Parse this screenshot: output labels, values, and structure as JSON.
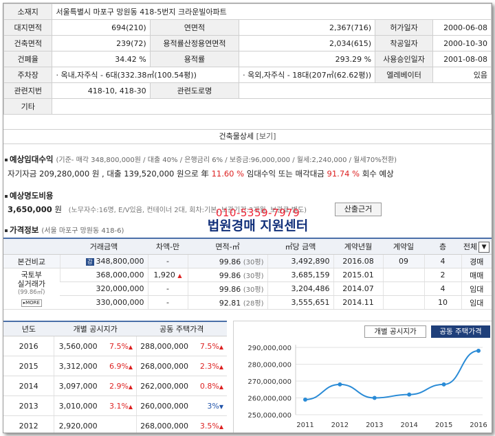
{
  "info": {
    "address_label": "소재지",
    "address": "서울특별시 마포구 망원동 418-5번지 크라운빌아파트",
    "land_area_label": "대지면적",
    "land_area": "694(210)",
    "floor_area_label": "연면적",
    "floor_area": "2,367(716)",
    "permit_date_label": "허가일자",
    "permit_date": "2000-06-08",
    "building_area_label": "건축면적",
    "building_area": "239(72)",
    "far_area_label": "용적률산정용연면적",
    "far_area": "2,034(615)",
    "start_date_label": "착공일자",
    "start_date": "2000-10-30",
    "bcr_label": "건폐율",
    "bcr": "34.42 %",
    "far_label": "용적률",
    "far": "293.29 %",
    "approval_date_label": "사용승인일자",
    "approval_date": "2001-08-08",
    "parking_label": "주차장",
    "parking_indoor": "· 옥내,자주식 - 6대(332.38㎡(100.54평))",
    "parking_outdoor": "· 옥외,자주식 - 18대(207㎡(62.62평))",
    "elevator_label": "엘레베이터",
    "elevator": "있음",
    "related_lot_label": "관련지번",
    "related_lot": "418-10, 418-30",
    "related_road_label": "관련도로명",
    "related_road": "",
    "etc_label": "기타",
    "etc": ""
  },
  "detail": {
    "label": "건축물상세",
    "link": "[보기]"
  },
  "rental": {
    "title": "예상임대수익",
    "subtitle": "(기준- 매각 348,800,000원 / 대출 40% / 은행금리 6% / 보증금:96,000,000 / 월세:2,240,000 / 월세70%전환)",
    "p1": "자기자금",
    "own_funds": "209,280,000",
    "p2": "원 , 대출",
    "loan": "139,520,000",
    "p3": "원으로 年",
    "yield": "11.60 %",
    "p4": "임대수익 또는 매각대금",
    "rate": "91.74 %",
    "p5": "회수 예상"
  },
  "eviction": {
    "title": "예상명도비용",
    "amount": "3,650,000",
    "unit": "원",
    "note": "(노무자수:16명, E/V있음, 컨테이너 2대, 회차:기본, 보관기간:3개월, 보관료 별도)",
    "button": "산출근거"
  },
  "watermark": {
    "phone": "010-5359-7979",
    "name": "법원경매 지원센터"
  },
  "price": {
    "title": "가격정보",
    "subtitle": "(서울 마포구 망원동 418-6)",
    "headers": [
      "거래금액",
      "차액-만",
      "면적-㎡",
      "㎡당 금액",
      "계약년월",
      "계약일",
      "층"
    ],
    "filter": "전체",
    "row_self_label": "본건비교",
    "row_self_tag": "감",
    "rows": [
      {
        "amount": "348,800,000",
        "diff": "-",
        "area": "99.86",
        "py": "(30평)",
        "per": "3,492,890",
        "ym": "2016.08",
        "day": "09",
        "floor": "4",
        "type": "경매"
      },
      {
        "amount": "368,000,000",
        "diff": "1,920",
        "area": "99.86",
        "py": "(30평)",
        "per": "3,685,159",
        "ym": "2015.01",
        "day": "",
        "floor": "2",
        "type": "매매"
      },
      {
        "amount": "320,000,000",
        "diff": "-",
        "area": "99.86",
        "py": "(30평)",
        "per": "3,204,486",
        "ym": "2014.07",
        "day": "",
        "floor": "4",
        "type": "임대"
      },
      {
        "amount": "330,000,000",
        "diff": "-",
        "area": "92.81",
        "py": "(28평)",
        "per": "3,555,651",
        "ym": "2014.11",
        "day": "",
        "floor": "10",
        "type": "임대"
      }
    ],
    "group_label_1": "국토부",
    "group_label_2": "실거래가",
    "group_label_3": "(99.86㎡)",
    "more": "▸MORE"
  },
  "official": {
    "headers": [
      "년도",
      "개별 공시지가",
      "공동 주택가격"
    ],
    "rows": [
      {
        "year": "2016",
        "land": "3,560,000",
        "land_pct": "7.5%",
        "land_dir": "up",
        "house": "288,000,000",
        "house_pct": "7.5%",
        "house_dir": "up"
      },
      {
        "year": "2015",
        "land": "3,312,000",
        "land_pct": "6.9%",
        "land_dir": "up",
        "house": "268,000,000",
        "house_pct": "2.3%",
        "house_dir": "up"
      },
      {
        "year": "2014",
        "land": "3,097,000",
        "land_pct": "2.9%",
        "land_dir": "up",
        "house": "262,000,000",
        "house_pct": "0.8%",
        "house_dir": "up"
      },
      {
        "year": "2013",
        "land": "3,010,000",
        "land_pct": "3.1%",
        "land_dir": "up",
        "house": "260,000,000",
        "house_pct": "3%",
        "house_dir": "down"
      },
      {
        "year": "2012",
        "land": "2,920,000",
        "land_pct": "",
        "land_dir": "",
        "house": "268,000,000",
        "house_pct": "3.5%",
        "house_dir": "up"
      }
    ]
  },
  "chart_tabs": {
    "land": "개별 공시지가",
    "house": "공동 주택가격"
  },
  "colors": {
    "line": "#2a8bd6",
    "active_tab": "#1f3f7a",
    "header_border": "#4a6fa8",
    "up": "#dd2222",
    "down": "#2255aa"
  },
  "chart_data": {
    "type": "line",
    "categories": [
      "2011",
      "2012",
      "2013",
      "2014",
      "2015",
      "2016"
    ],
    "series": [
      {
        "values": [
          259000000,
          268000000,
          260000000,
          262000000,
          268000000,
          288000000
        ]
      }
    ],
    "ylim": [
      250000000,
      290000000
    ],
    "yticks": [
      "290,000,000",
      "280,000,000",
      "270,000,000",
      "260,000,000",
      "250,000,000"
    ],
    "ytick_values": [
      290000000,
      280000000,
      270000000,
      260000000,
      250000000
    ],
    "grid": true
  }
}
